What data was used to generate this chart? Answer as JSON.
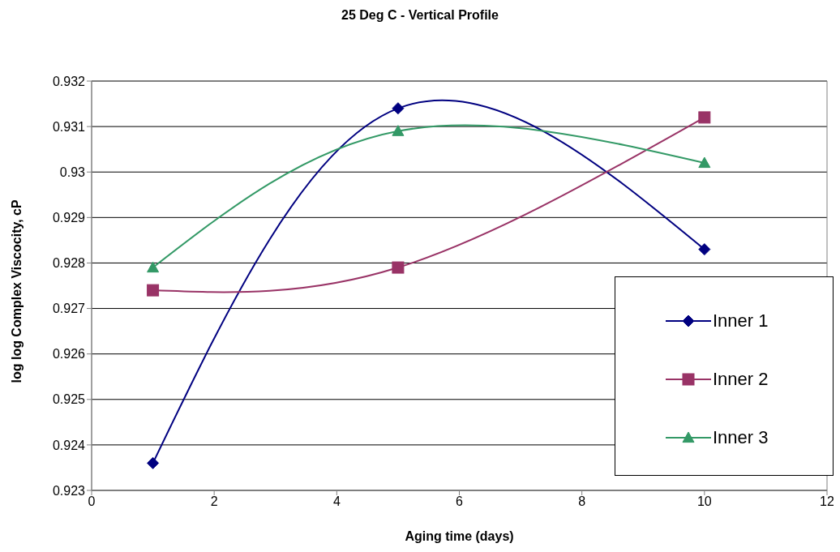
{
  "chart_data": {
    "type": "line",
    "title": "25 Deg C - Vertical Profile",
    "xlabel": "Aging time (days)",
    "ylabel": "log log Complex Viscocity, cP",
    "x": [
      1,
      5,
      10
    ],
    "series": [
      {
        "name": "Inner 1",
        "color": "#000080",
        "marker": "diamond",
        "values": [
          0.9236,
          0.9314,
          0.9283
        ]
      },
      {
        "name": "Inner 2",
        "color": "#993366",
        "marker": "square",
        "values": [
          0.9274,
          0.9279,
          0.9312
        ]
      },
      {
        "name": "Inner 3",
        "color": "#339966",
        "marker": "triangle",
        "values": [
          0.9279,
          0.9309,
          0.9302
        ]
      }
    ],
    "xlim": [
      0,
      12
    ],
    "xticks": [
      0,
      2,
      4,
      6,
      8,
      10,
      12
    ],
    "ylim": [
      0.923,
      0.932
    ],
    "yticks": [
      0.923,
      0.924,
      0.925,
      0.926,
      0.927,
      0.928,
      0.929,
      0.93,
      0.931,
      0.932
    ],
    "grid": "y",
    "legend": "bottom right",
    "line_style": "solid"
  }
}
